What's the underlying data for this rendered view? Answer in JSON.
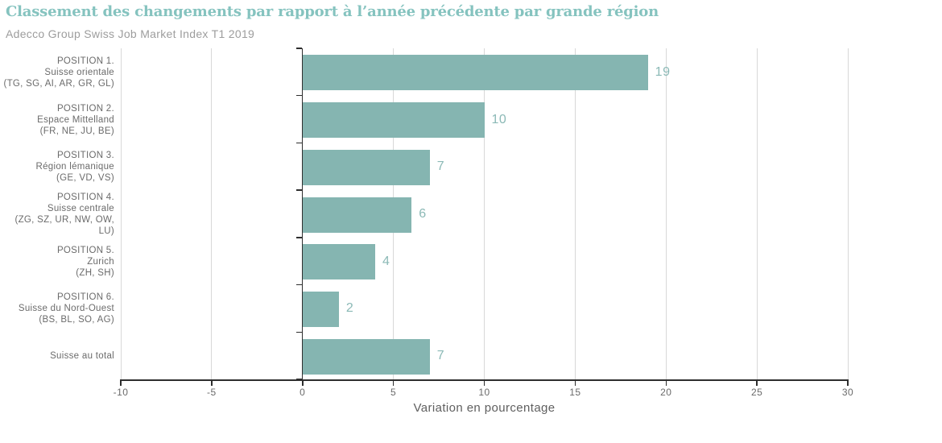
{
  "title": "Classement des changements par rapport à l’année précédente par grande région",
  "subtitle": "Adecco Group Swiss Job Market Index T1 2019",
  "colors": {
    "title": "#85c3bf",
    "subtitle": "#9d9d9d",
    "bar": "#85b5b1",
    "value_label": "#8bb9b6",
    "axis": "#2e2e2e",
    "gridline": "#d8d8d8",
    "tick_label": "#6a6a6a",
    "category_label": "#6b6b6b",
    "axis_title": "#5f5f5f"
  },
  "chart_data": {
    "type": "bar",
    "orientation": "horizontal",
    "title": "Classement des changements par rapport à l’année précédente par grande région",
    "subtitle": "Adecco Group Swiss Job Market Index T1 2019",
    "categories": [
      [
        "POSITION 1.",
        "Suisse orientale",
        "(TG, SG, AI, AR, GR, GL)"
      ],
      [
        "POSITION 2.",
        "Espace Mittelland",
        "(FR, NE, JU, BE)"
      ],
      [
        "POSITION 3.",
        "Région lémanique",
        "(GE, VD, VS)"
      ],
      [
        "POSITION 4.",
        "Suisse centrale",
        "(ZG, SZ, UR, NW, OW, LU)"
      ],
      [
        "POSITION 5.",
        "Zurich",
        "(ZH, SH)"
      ],
      [
        "POSITION 6.",
        "Suisse du Nord-Ouest",
        "(BS, BL, SO, AG)"
      ],
      [
        "Suisse au total"
      ]
    ],
    "values": [
      19,
      10,
      7,
      6,
      4,
      2,
      7
    ],
    "xlabel": "Variation en pourcentage",
    "xlim": [
      -10,
      30
    ],
    "xticks": [
      -10,
      -5,
      0,
      5,
      10,
      15,
      20,
      25,
      30
    ],
    "grid": "vertical-only",
    "value_labels_shown": true
  }
}
